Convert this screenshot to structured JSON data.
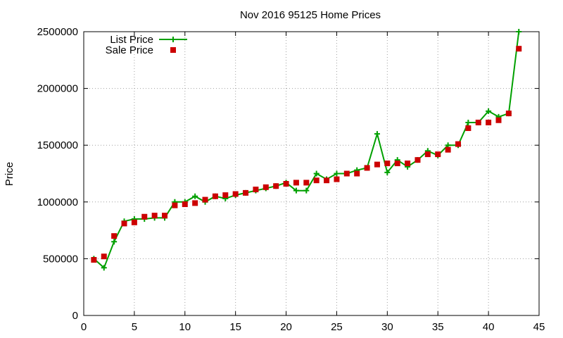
{
  "chart_data": {
    "type": "line",
    "title": "Nov 2016 95125 Home Prices",
    "xlabel": "",
    "ylabel": "Price",
    "xlim": [
      0,
      45
    ],
    "ylim": [
      0,
      2500000
    ],
    "x_ticks": [
      "0",
      "5",
      "10",
      "15",
      "20",
      "25",
      "30",
      "35",
      "40",
      "45"
    ],
    "y_ticks": [
      "0",
      "500000",
      "1000000",
      "1500000",
      "2000000",
      "2500000"
    ],
    "grid": true,
    "legend_position": "top-left",
    "series": [
      {
        "name": "List Price",
        "style": "line-plus",
        "color": "#00a000",
        "x": [
          1,
          2,
          3,
          4,
          5,
          6,
          7,
          8,
          9,
          10,
          11,
          12,
          13,
          14,
          15,
          16,
          17,
          18,
          19,
          20,
          21,
          22,
          23,
          24,
          25,
          26,
          27,
          28,
          29,
          30,
          31,
          32,
          33,
          34,
          35,
          36,
          37,
          38,
          39,
          40,
          41,
          42,
          43
        ],
        "values": [
          500000,
          420000,
          650000,
          830000,
          850000,
          850000,
          860000,
          860000,
          1000000,
          1000000,
          1050000,
          1000000,
          1050000,
          1030000,
          1060000,
          1080000,
          1100000,
          1120000,
          1140000,
          1170000,
          1100000,
          1100000,
          1250000,
          1200000,
          1250000,
          1250000,
          1280000,
          1300000,
          1600000,
          1260000,
          1370000,
          1310000,
          1370000,
          1450000,
          1410000,
          1500000,
          1500000,
          1700000,
          1700000,
          1800000,
          1750000,
          1780000,
          2500000
        ]
      },
      {
        "name": "Sale Price",
        "style": "square-markers",
        "color": "#cc0000",
        "x": [
          1,
          2,
          3,
          4,
          5,
          6,
          7,
          8,
          9,
          10,
          11,
          12,
          13,
          14,
          15,
          16,
          17,
          18,
          19,
          20,
          21,
          22,
          23,
          24,
          25,
          26,
          27,
          28,
          29,
          30,
          31,
          32,
          33,
          34,
          35,
          36,
          37,
          38,
          39,
          40,
          41,
          42,
          43
        ],
        "values": [
          490000,
          520000,
          700000,
          810000,
          820000,
          870000,
          880000,
          880000,
          970000,
          980000,
          990000,
          1020000,
          1050000,
          1060000,
          1070000,
          1080000,
          1110000,
          1130000,
          1140000,
          1160000,
          1170000,
          1170000,
          1190000,
          1190000,
          1200000,
          1250000,
          1250000,
          1300000,
          1330000,
          1340000,
          1340000,
          1340000,
          1370000,
          1420000,
          1420000,
          1460000,
          1510000,
          1650000,
          1700000,
          1700000,
          1720000,
          1780000,
          2350000
        ]
      }
    ]
  }
}
